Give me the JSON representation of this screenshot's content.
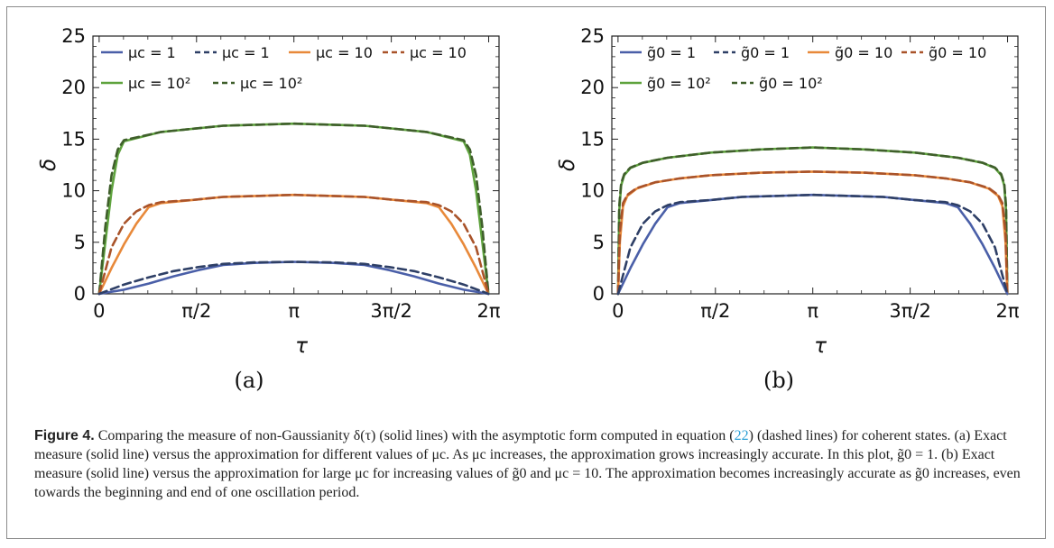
{
  "chart_data": [
    {
      "type": "line",
      "panel": "(a)",
      "xlabel": "τ",
      "ylabel": "δ",
      "xlim": [
        -0.1,
        6.45
      ],
      "ylim": [
        0,
        25
      ],
      "x_ticks": [
        0,
        1.5708,
        3.1416,
        4.7124,
        6.2832
      ],
      "x_tick_labels": [
        "0",
        "π/2",
        "π",
        "3π/2",
        "2π"
      ],
      "y_ticks": [
        0,
        5,
        10,
        15,
        20,
        25
      ],
      "y_tick_labels": [
        "0",
        "5",
        "10",
        "15",
        "20",
        "25"
      ],
      "grid": false,
      "legend_position": "top-left",
      "legend": [
        {
          "name": "μc = 1",
          "color": "#4a5fa8",
          "dashed": false
        },
        {
          "name": "μc = 1",
          "color": "#2e3f66",
          "dashed": true
        },
        {
          "name": "μc = 10",
          "color": "#e8893a",
          "dashed": false
        },
        {
          "name": "μc = 10",
          "color": "#a9532a",
          "dashed": true
        },
        {
          "name": "μc = 10²",
          "color": "#5fa33e",
          "dashed": false
        },
        {
          "name": "μc = 10²",
          "color": "#3f5f2b",
          "dashed": true
        }
      ],
      "series": [
        {
          "color": "#5fa33e",
          "dashed": false,
          "x": [
            0,
            0.1,
            0.2,
            0.3,
            0.4,
            1.0,
            2.0,
            3.14,
            4.28,
            5.28,
            5.88,
            5.98,
            6.08,
            6.18,
            6.28
          ],
          "y": [
            0,
            5,
            10,
            13.5,
            14.8,
            15.7,
            16.3,
            16.5,
            16.3,
            15.7,
            14.8,
            13.5,
            10,
            5,
            0
          ]
        },
        {
          "color": "#3f5f2b",
          "dashed": true,
          "x": [
            0,
            0.1,
            0.2,
            0.3,
            0.4,
            1.0,
            2.0,
            3.14,
            4.28,
            5.28,
            5.88,
            5.98,
            6.08,
            6.18,
            6.28
          ],
          "y": [
            0,
            6.5,
            11.5,
            14.0,
            14.9,
            15.7,
            16.3,
            16.5,
            16.3,
            15.7,
            14.9,
            14.0,
            11.5,
            6.5,
            0
          ]
        },
        {
          "color": "#e8893a",
          "dashed": false,
          "x": [
            0,
            0.2,
            0.4,
            0.6,
            0.8,
            1.0,
            1.5,
            2.0,
            3.14,
            4.28,
            4.78,
            5.28,
            5.48,
            5.68,
            5.88,
            6.08,
            6.28
          ],
          "y": [
            0,
            2.5,
            4.8,
            6.8,
            8.4,
            8.8,
            9.1,
            9.4,
            9.6,
            9.4,
            9.1,
            8.8,
            8.4,
            6.8,
            4.8,
            2.5,
            0
          ]
        },
        {
          "color": "#a9532a",
          "dashed": true,
          "x": [
            0,
            0.2,
            0.4,
            0.6,
            0.8,
            1.0,
            1.5,
            2.0,
            3.14,
            4.28,
            4.78,
            5.28,
            5.48,
            5.68,
            5.88,
            6.08,
            6.28
          ],
          "y": [
            0,
            4.5,
            6.8,
            8.0,
            8.6,
            8.9,
            9.1,
            9.4,
            9.6,
            9.4,
            9.1,
            8.9,
            8.6,
            8.0,
            6.8,
            4.5,
            0
          ]
        },
        {
          "color": "#4a5fa8",
          "dashed": false,
          "x": [
            0,
            0.4,
            0.8,
            1.2,
            1.6,
            2.0,
            2.5,
            3.14,
            3.78,
            4.28,
            4.68,
            5.08,
            5.48,
            5.88,
            6.28
          ],
          "y": [
            0,
            0.4,
            1.0,
            1.7,
            2.3,
            2.8,
            3.0,
            3.1,
            3.0,
            2.8,
            2.3,
            1.7,
            1.0,
            0.4,
            0
          ]
        },
        {
          "color": "#2e3f66",
          "dashed": true,
          "x": [
            0,
            0.4,
            0.8,
            1.2,
            1.6,
            2.0,
            2.5,
            3.14,
            3.78,
            4.28,
            4.68,
            5.08,
            5.48,
            5.88,
            6.28
          ],
          "y": [
            0,
            0.9,
            1.6,
            2.2,
            2.6,
            2.9,
            3.05,
            3.1,
            3.05,
            2.9,
            2.6,
            2.2,
            1.6,
            0.9,
            0
          ]
        }
      ]
    },
    {
      "type": "line",
      "panel": "(b)",
      "xlabel": "τ",
      "ylabel": "δ",
      "xlim": [
        -0.1,
        6.45
      ],
      "ylim": [
        0,
        25
      ],
      "x_ticks": [
        0,
        1.5708,
        3.1416,
        4.7124,
        6.2832
      ],
      "x_tick_labels": [
        "0",
        "π/2",
        "π",
        "3π/2",
        "2π"
      ],
      "y_ticks": [
        0,
        5,
        10,
        15,
        20,
        25
      ],
      "y_tick_labels": [
        "0",
        "5",
        "10",
        "15",
        "20",
        "25"
      ],
      "grid": false,
      "legend_position": "top-left",
      "legend": [
        {
          "name": "g̃0 = 1",
          "color": "#4a5fa8",
          "dashed": false
        },
        {
          "name": "g̃0 = 1",
          "color": "#2e3f66",
          "dashed": true
        },
        {
          "name": "g̃0 = 10",
          "color": "#e8893a",
          "dashed": false
        },
        {
          "name": "g̃0 = 10",
          "color": "#a9532a",
          "dashed": true
        },
        {
          "name": "g̃0 = 10²",
          "color": "#5fa33e",
          "dashed": false
        },
        {
          "name": "g̃0 = 10²",
          "color": "#3f5f2b",
          "dashed": true
        }
      ],
      "series": [
        {
          "color": "#5fa33e",
          "dashed": false,
          "x": [
            0,
            0.02,
            0.05,
            0.1,
            0.2,
            0.4,
            0.8,
            1.5,
            2.3,
            3.14,
            3.98,
            4.78,
            5.48,
            5.88,
            6.08,
            6.18,
            6.23,
            6.26,
            6.28
          ],
          "y": [
            0,
            8,
            10.5,
            11.5,
            12.2,
            12.7,
            13.2,
            13.7,
            14.0,
            14.2,
            14.0,
            13.7,
            13.2,
            12.7,
            12.2,
            11.5,
            10.5,
            8,
            0
          ]
        },
        {
          "color": "#3f5f2b",
          "dashed": true,
          "x": [
            0,
            0.02,
            0.05,
            0.1,
            0.2,
            0.4,
            0.8,
            1.5,
            2.3,
            3.14,
            3.98,
            4.78,
            5.48,
            5.88,
            6.08,
            6.18,
            6.23,
            6.26,
            6.28
          ],
          "y": [
            0,
            8.5,
            10.7,
            11.6,
            12.25,
            12.72,
            13.2,
            13.7,
            14.0,
            14.2,
            14.0,
            13.7,
            13.2,
            12.72,
            12.25,
            11.6,
            10.7,
            8.5,
            0
          ]
        },
        {
          "color": "#e8893a",
          "dashed": false,
          "x": [
            0,
            0.03,
            0.08,
            0.15,
            0.3,
            0.6,
            1.0,
            1.5,
            2.3,
            3.14,
            3.98,
            4.78,
            5.28,
            5.68,
            5.98,
            6.13,
            6.2,
            6.25,
            6.28
          ],
          "y": [
            0,
            5,
            8.5,
            9.5,
            10.2,
            10.8,
            11.2,
            11.5,
            11.75,
            11.85,
            11.75,
            11.5,
            11.2,
            10.8,
            10.2,
            9.5,
            8.5,
            5,
            0
          ]
        },
        {
          "color": "#a9532a",
          "dashed": true,
          "x": [
            0,
            0.03,
            0.08,
            0.15,
            0.3,
            0.6,
            1.0,
            1.5,
            2.3,
            3.14,
            3.98,
            4.78,
            5.28,
            5.68,
            5.98,
            6.13,
            6.2,
            6.25,
            6.28
          ],
          "y": [
            0,
            6,
            8.8,
            9.6,
            10.25,
            10.82,
            11.2,
            11.5,
            11.75,
            11.85,
            11.75,
            11.5,
            11.2,
            10.82,
            10.25,
            9.6,
            8.8,
            6,
            0
          ]
        },
        {
          "color": "#4a5fa8",
          "dashed": false,
          "x": [
            0,
            0.2,
            0.4,
            0.6,
            0.8,
            1.0,
            1.5,
            2.0,
            3.14,
            4.28,
            4.78,
            5.28,
            5.48,
            5.68,
            5.88,
            6.08,
            6.28
          ],
          "y": [
            0,
            2.5,
            4.8,
            6.8,
            8.4,
            8.8,
            9.1,
            9.4,
            9.6,
            9.4,
            9.1,
            8.8,
            8.4,
            6.8,
            4.8,
            2.5,
            0
          ]
        },
        {
          "color": "#2e3f66",
          "dashed": true,
          "x": [
            0,
            0.2,
            0.4,
            0.6,
            0.8,
            1.0,
            1.5,
            2.0,
            3.14,
            4.28,
            4.78,
            5.28,
            5.48,
            5.68,
            5.88,
            6.08,
            6.28
          ],
          "y": [
            0,
            4.5,
            6.8,
            8.0,
            8.6,
            8.9,
            9.1,
            9.4,
            9.6,
            9.4,
            9.1,
            8.9,
            8.6,
            8.0,
            6.8,
            4.5,
            0
          ]
        }
      ]
    }
  ],
  "caption": {
    "label": "Figure 4.",
    "parts": [
      " Comparing the measure of non-Gaussianity δ(τ) (solid lines) with the asymptotic form computed in equation (",
      "22",
      ") (dashed lines) for coherent states. (a) Exact measure (solid line) versus the approximation for different values of μc. As μc increases, the approximation grows increasingly accurate. In this plot, g̃0 = 1. (b) Exact measure (solid line) versus the approximation for large μc for increasing values of g̃0 and μc = 10. The approximation becomes increasingly accurate as g̃0 increases, even towards the beginning and end of one oscillation period."
    ]
  }
}
